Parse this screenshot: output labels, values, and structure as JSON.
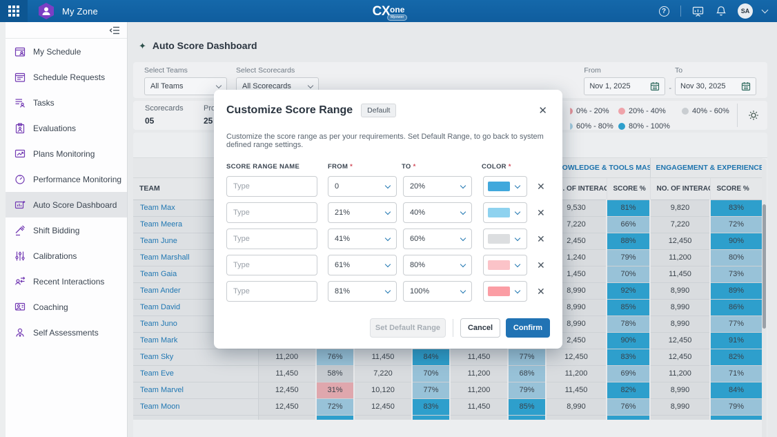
{
  "topbar": {
    "app_title": "My Zone",
    "logo_primary": "CX",
    "logo_secondary": "one",
    "logo_badge": "Mpower",
    "avatar_initials": "SA",
    "help_glyph": "?"
  },
  "sidebar": {
    "items": [
      {
        "id": "my-schedule",
        "label": "My Schedule",
        "active": false
      },
      {
        "id": "schedule-requests",
        "label": "Schedule Requests",
        "active": false
      },
      {
        "id": "tasks",
        "label": "Tasks",
        "active": false
      },
      {
        "id": "evaluations",
        "label": "Evaluations",
        "active": false
      },
      {
        "id": "plans-monitoring",
        "label": "Plans Monitoring",
        "active": false
      },
      {
        "id": "performance-monitoring",
        "label": "Performance Monitoring",
        "active": false
      },
      {
        "id": "auto-score-dashboard",
        "label": "Auto Score Dashboard",
        "active": true
      },
      {
        "id": "shift-bidding",
        "label": "Shift Bidding",
        "active": false
      },
      {
        "id": "calibrations",
        "label": "Calibrations",
        "active": false
      },
      {
        "id": "recent-interactions",
        "label": "Recent Interactions",
        "active": false
      },
      {
        "id": "coaching",
        "label": "Coaching",
        "active": false
      },
      {
        "id": "self-assessments",
        "label": "Self Assessments",
        "active": false
      }
    ]
  },
  "page": {
    "title": "Auto Score Dashboard",
    "sparkle_glyph": "✦",
    "filters": {
      "teams_label": "Select Teams",
      "teams_value": "All Teams",
      "scorecards_label": "Select Scorecards",
      "scorecards_value": "All Scorecards",
      "from_label": "From",
      "from_value": "Nov 1, 2025",
      "to_label": "To",
      "to_value": "Nov 30, 2025",
      "range_separator": "-"
    },
    "summary": [
      {
        "label": "Scorecards",
        "value": "05"
      },
      {
        "label": "Pro",
        "value": "25"
      }
    ],
    "legend": [
      {
        "label": "0% - 20%",
        "color": "#e08f97",
        "clipped": true
      },
      {
        "label": "20% - 40%",
        "color": "#efa3aa",
        "clipped": false
      },
      {
        "label": "40% - 60%",
        "color": "#c9cdd1",
        "clipped": false
      },
      {
        "label": "60% - 80%",
        "color": "#9cc6db",
        "clipped": true
      },
      {
        "label": "80% - 100%",
        "color": "#2e9fcc",
        "clipped": false
      }
    ]
  },
  "table": {
    "team_header": "TEAM",
    "groups": [
      "",
      "",
      "",
      "KNOWLEDGE & TOOLS MASTERY...",
      "ENGAGEMENT & EXPERIENCE"
    ],
    "sub_num": "NO. OF INTERACTI...",
    "sub_score": "SCORE %",
    "score_colors": {
      "B": "#2e9fcc",
      "L": "#98c2d8",
      "G": "#c6cbd0",
      "P": "#dfa7ad"
    },
    "rows": [
      {
        "team": "Team Max",
        "cells": [
          [
            "",
            ""
          ],
          [
            "",
            ""
          ],
          [
            "",
            ""
          ],
          [
            "9,530",
            "81%",
            "B"
          ],
          [
            "9,820",
            "83%",
            "B"
          ]
        ]
      },
      {
        "team": "Team Meera",
        "cells": [
          [
            "",
            ""
          ],
          [
            "",
            ""
          ],
          [
            "",
            ""
          ],
          [
            "7,220",
            "66%",
            "L"
          ],
          [
            "7,220",
            "72%",
            "L"
          ]
        ]
      },
      {
        "team": "Team June",
        "cells": [
          [
            "",
            ""
          ],
          [
            "",
            ""
          ],
          [
            "",
            ""
          ],
          [
            "2,450",
            "88%",
            "B"
          ],
          [
            "12,450",
            "90%",
            "B"
          ]
        ]
      },
      {
        "team": "Team Marshall",
        "cells": [
          [
            "",
            ""
          ],
          [
            "",
            ""
          ],
          [
            "",
            ""
          ],
          [
            "1,240",
            "79%",
            "L"
          ],
          [
            "11,200",
            "80%",
            "L"
          ]
        ]
      },
      {
        "team": "Team Gaia",
        "cells": [
          [
            "",
            ""
          ],
          [
            "",
            ""
          ],
          [
            "",
            ""
          ],
          [
            "1,450",
            "70%",
            "L"
          ],
          [
            "11,450",
            "73%",
            "L"
          ]
        ]
      },
      {
        "team": "Team Ander",
        "cells": [
          [
            "",
            ""
          ],
          [
            "",
            ""
          ],
          [
            "",
            ""
          ],
          [
            "8,990",
            "92%",
            "B"
          ],
          [
            "8,990",
            "89%",
            "B"
          ]
        ]
      },
      {
        "team": "Team David",
        "cells": [
          [
            "",
            ""
          ],
          [
            "",
            ""
          ],
          [
            "",
            ""
          ],
          [
            "8,990",
            "85%",
            "B"
          ],
          [
            "8,990",
            "86%",
            "B"
          ]
        ]
      },
      {
        "team": "Team Juno",
        "cells": [
          [
            "",
            ""
          ],
          [
            "",
            ""
          ],
          [
            "",
            ""
          ],
          [
            "8,990",
            "78%",
            "L"
          ],
          [
            "8,990",
            "77%",
            "L"
          ]
        ]
      },
      {
        "team": "Team Mark",
        "cells": [
          [
            "",
            ""
          ],
          [
            "",
            ""
          ],
          [
            "",
            ""
          ],
          [
            "2,450",
            "90%",
            "B"
          ],
          [
            "12,450",
            "91%",
            "B"
          ]
        ]
      },
      {
        "team": "Team Sky",
        "cells": [
          [
            "11,200",
            "76%",
            "L"
          ],
          [
            "11,450",
            "84%",
            "B"
          ],
          [
            "11,450",
            "77%",
            "L"
          ],
          [
            "12,450",
            "83%",
            "B"
          ],
          [
            "12,450",
            "82%",
            "B"
          ]
        ]
      },
      {
        "team": "Team Eve",
        "cells": [
          [
            "11,450",
            "58%",
            "G"
          ],
          [
            "7,220",
            "70%",
            "L"
          ],
          [
            "11,200",
            "68%",
            "L"
          ],
          [
            "11,200",
            "69%",
            "L"
          ],
          [
            "11,200",
            "71%",
            "L"
          ]
        ]
      },
      {
        "team": "Team Marvel",
        "cells": [
          [
            "12,450",
            "31%",
            "P"
          ],
          [
            "10,120",
            "77%",
            "L"
          ],
          [
            "11,200",
            "79%",
            "L"
          ],
          [
            "11,450",
            "82%",
            "B"
          ],
          [
            "8,990",
            "84%",
            "B"
          ]
        ]
      },
      {
        "team": "Team Moon",
        "cells": [
          [
            "12,450",
            "72%",
            "L"
          ],
          [
            "12,450",
            "83%",
            "B"
          ],
          [
            "11,450",
            "85%",
            "B"
          ],
          [
            "8,990",
            "76%",
            "L"
          ],
          [
            "8,990",
            "79%",
            "L"
          ]
        ]
      },
      {
        "team": "",
        "partial": true,
        "cells": [
          [
            "",
            "",
            "B"
          ],
          [
            "",
            "",
            "B"
          ],
          [
            "",
            "",
            "B"
          ],
          [
            "",
            "",
            "B"
          ],
          [
            "",
            "",
            "B"
          ]
        ]
      }
    ]
  },
  "modal": {
    "title": "Customize Score Range",
    "badge": "Default",
    "close_glyph": "✕",
    "description": "Customize the score range as per your requirements. Set Default Range, to go back to system defined range settings.",
    "columns": {
      "name": "SCORE RANGE NAME",
      "from": "FROM",
      "to": "TO",
      "color": "COLOR",
      "required_mark": "*"
    },
    "name_placeholder": "Type",
    "rows": [
      {
        "from": "0",
        "to": "20%",
        "color": "#41a8dc"
      },
      {
        "from": "21%",
        "to": "40%",
        "color": "#8ed2ef"
      },
      {
        "from": "41%",
        "to": "60%",
        "color": "#dcdee0"
      },
      {
        "from": "61%",
        "to": "80%",
        "color": "#fbc3c8"
      },
      {
        "from": "81%",
        "to": "100%",
        "color": "#fb9da4"
      }
    ],
    "buttons": {
      "set_default": "Set Default Range",
      "cancel": "Cancel",
      "confirm": "Confirm"
    }
  }
}
